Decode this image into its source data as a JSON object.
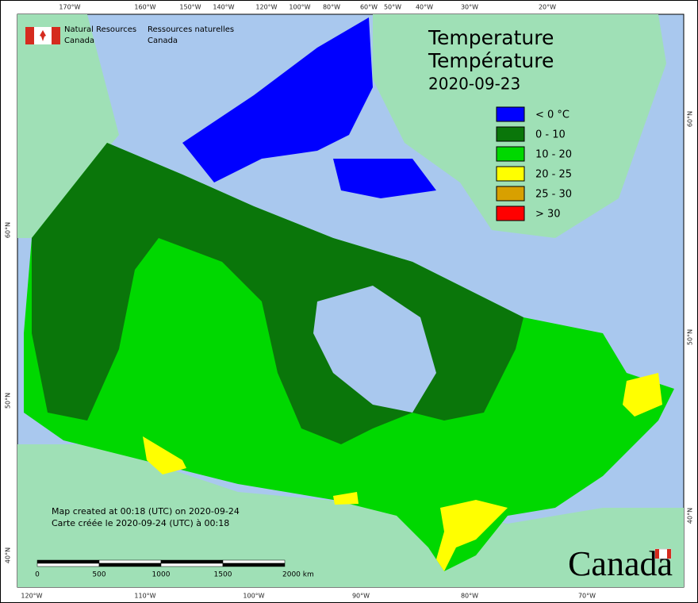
{
  "header": {
    "agency_en": [
      "Natural Resources",
      "Canada"
    ],
    "agency_fr": [
      "Ressources naturelles",
      "Canada"
    ],
    "title_en": "Temperature",
    "title_fr": "Température",
    "date": "2020-09-23"
  },
  "legend": [
    {
      "label": "< 0 °C",
      "color": "#0000ff"
    },
    {
      "label": "0 - 10",
      "color": "#0a760a"
    },
    {
      "label": "10 - 20",
      "color": "#00d800"
    },
    {
      "label": "20 - 25",
      "color": "#ffff00"
    },
    {
      "label": "25 - 30",
      "color": "#d8a000"
    },
    {
      "label": "> 30",
      "color": "#ff0000"
    }
  ],
  "graticule": {
    "top": [
      "170°W",
      "160°W",
      "150°W",
      "140°W",
      "120°W",
      "100°W",
      "80°W",
      "60°W",
      "50°W",
      "40°W",
      "30°W",
      "20°W"
    ],
    "bottom": [
      "120°W",
      "110°W",
      "100°W",
      "90°W",
      "80°W",
      "70°W"
    ],
    "left": [
      "60°N",
      "50°N",
      "40°N"
    ],
    "right": [
      "60°N",
      "50°N",
      "40°N"
    ]
  },
  "footer": [
    "Map created at 00:18 (UTC) on 2020-09-24",
    "Carte créée le 2020-09-24 (UTC) à 00:18"
  ],
  "scale_bar": [
    "0",
    "500",
    "1000",
    "1500",
    "2000 km"
  ],
  "wordmark": "Canada"
}
